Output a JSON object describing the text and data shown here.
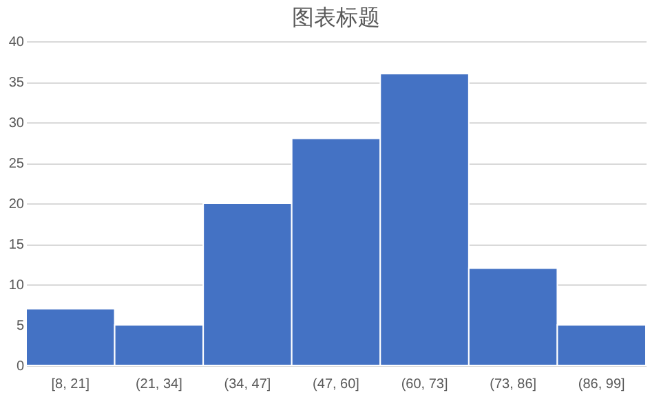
{
  "chart_data": {
    "type": "bar",
    "title": "图表标题",
    "categories": [
      "[8, 21]",
      "(21, 34]",
      "(34, 47]",
      "(47, 60]",
      "(60, 73]",
      "(73, 86]",
      "(86, 99]"
    ],
    "values": [
      7,
      5,
      20,
      28,
      36,
      12,
      5
    ],
    "color": "#4472c4",
    "ylim": [
      0,
      40
    ],
    "yticks": [
      0,
      5,
      10,
      15,
      20,
      25,
      30,
      35,
      40
    ],
    "grid": "y"
  }
}
